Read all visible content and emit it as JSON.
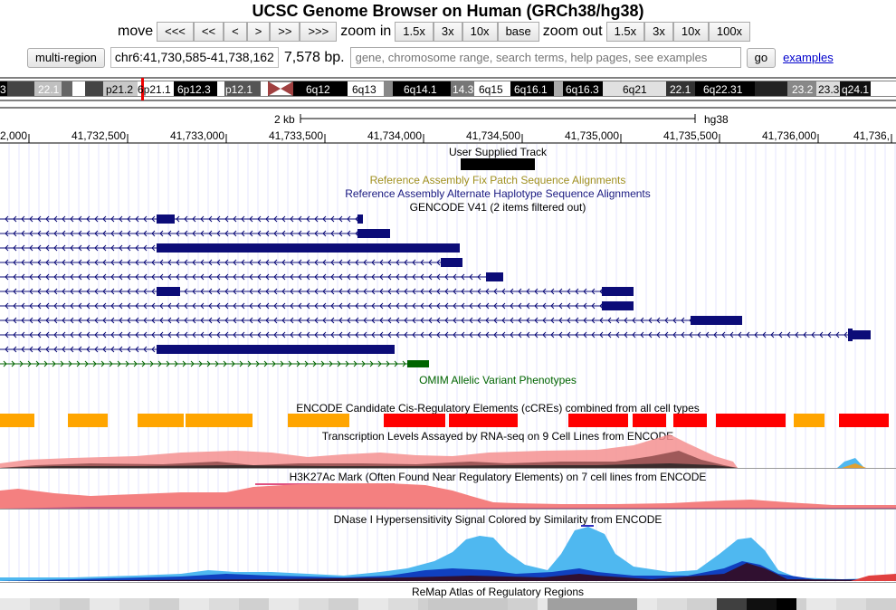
{
  "header": {
    "title": "UCSC Genome Browser on Human (GRCh38/hg38)"
  },
  "nav": {
    "move_label": "move",
    "move_buttons": [
      "<<<",
      "<<",
      "<",
      ">",
      ">>",
      ">>>"
    ],
    "zoom_in_label": "zoom in",
    "zoom_in_buttons": [
      "1.5x",
      "3x",
      "10x",
      "base"
    ],
    "zoom_out_label": "zoom out",
    "zoom_out_buttons": [
      "1.5x",
      "3x",
      "10x",
      "100x"
    ]
  },
  "position_bar": {
    "multi_region_label": "multi-region",
    "position": "chr6:41,730,585-41,738,162",
    "size": "7,578 bp.",
    "search_placeholder": "gene, chromosome range, search terms, help pages, see examples",
    "go_label": "go",
    "examples_label": "examples"
  },
  "ideogram": {
    "bands": [
      "3",
      "22.1",
      "p21.2",
      "6p21.1",
      "6p12.3",
      "p12.1",
      "6q12",
      "6q13",
      "6q14.1",
      "14.3",
      "6q15",
      "6q16.1",
      "6q16.3",
      "6q21",
      "22.1",
      "6q22.31",
      "23.2",
      "23.3",
      "q24.1"
    ]
  },
  "ruler": {
    "scale_label": "2 kb",
    "assembly": "hg38",
    "ticks": [
      "2,000",
      "41,732,500",
      "41,733,000",
      "41,733,500",
      "41,734,000",
      "41,734,500",
      "41,735,000",
      "41,735,500",
      "41,736,000",
      "41,736,"
    ]
  },
  "tracks": {
    "user_supplied": "User Supplied Track",
    "fix_patch": "Reference Assembly Fix Patch Sequence Alignments",
    "alt_haplotype": "Reference Assembly Alternate Haplotype Sequence Alignments",
    "gencode": "GENCODE V41 (2 items filtered out)",
    "omim": "OMIM Allelic Variant Phenotypes",
    "ccre": "ENCODE Candidate Cis-Regulatory Elements (cCREs) combined from all cell types",
    "rnaseq": "Transcription Levels Assayed by RNA-seq on 9 Cell Lines from ENCODE",
    "h3k27ac": "H3K27Ac Mark (Often Found Near Regulatory Elements) on 7 cell lines from ENCODE",
    "dnase": "DNase I Hypersensitivity Signal Colored by Similarity from ENCODE",
    "remap": "ReMap Atlas of Regulatory Regions"
  },
  "colors": {
    "gencode": "#0c0c78",
    "omim": "#006400",
    "ccre_distal": "#ffa500",
    "ccre_proximal": "#ff0000",
    "fix_patch": "#a09020",
    "alt_haplotype": "#1a1a80",
    "h3k27ac": "#ff8080",
    "dnase_light": "#4fb8f0",
    "dnase_dark": "#1040c0"
  }
}
